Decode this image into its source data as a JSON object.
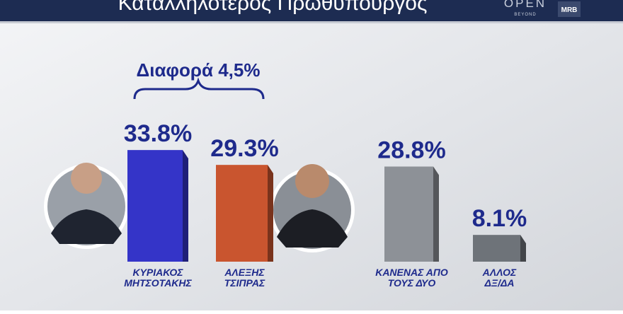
{
  "header": {
    "title": "Καταλληλοτερος Πρωθυπουργος",
    "logo_main": "OPEN",
    "logo_sub": "BEYOND",
    "logo_partner": "MRB"
  },
  "chart_data": {
    "type": "bar",
    "annotation": "Διαφορά 4,5%",
    "categories": [
      [
        "ΚΥΡΙΑΚΟΣ",
        "ΜΗΤΣΟΤΑΚΗΣ"
      ],
      [
        "ΑΛΕΞΗΣ",
        "ΤΣΙΠΡΑΣ"
      ],
      [
        "ΚΑΝΕΝΑΣ ΑΠΟ",
        "ΤΟΥΣ ΔΥΟ"
      ],
      [
        "ΑΛΛΟΣ",
        "ΔΞ/ΔΑ"
      ]
    ],
    "values": [
      33.8,
      29.3,
      28.8,
      8.1
    ],
    "value_labels": [
      "33.8%",
      "29.3%",
      "28.8%",
      "8.1%"
    ],
    "colors": [
      "#3434c8",
      "#c9552f",
      "#8d9197",
      "#6e7379"
    ]
  }
}
